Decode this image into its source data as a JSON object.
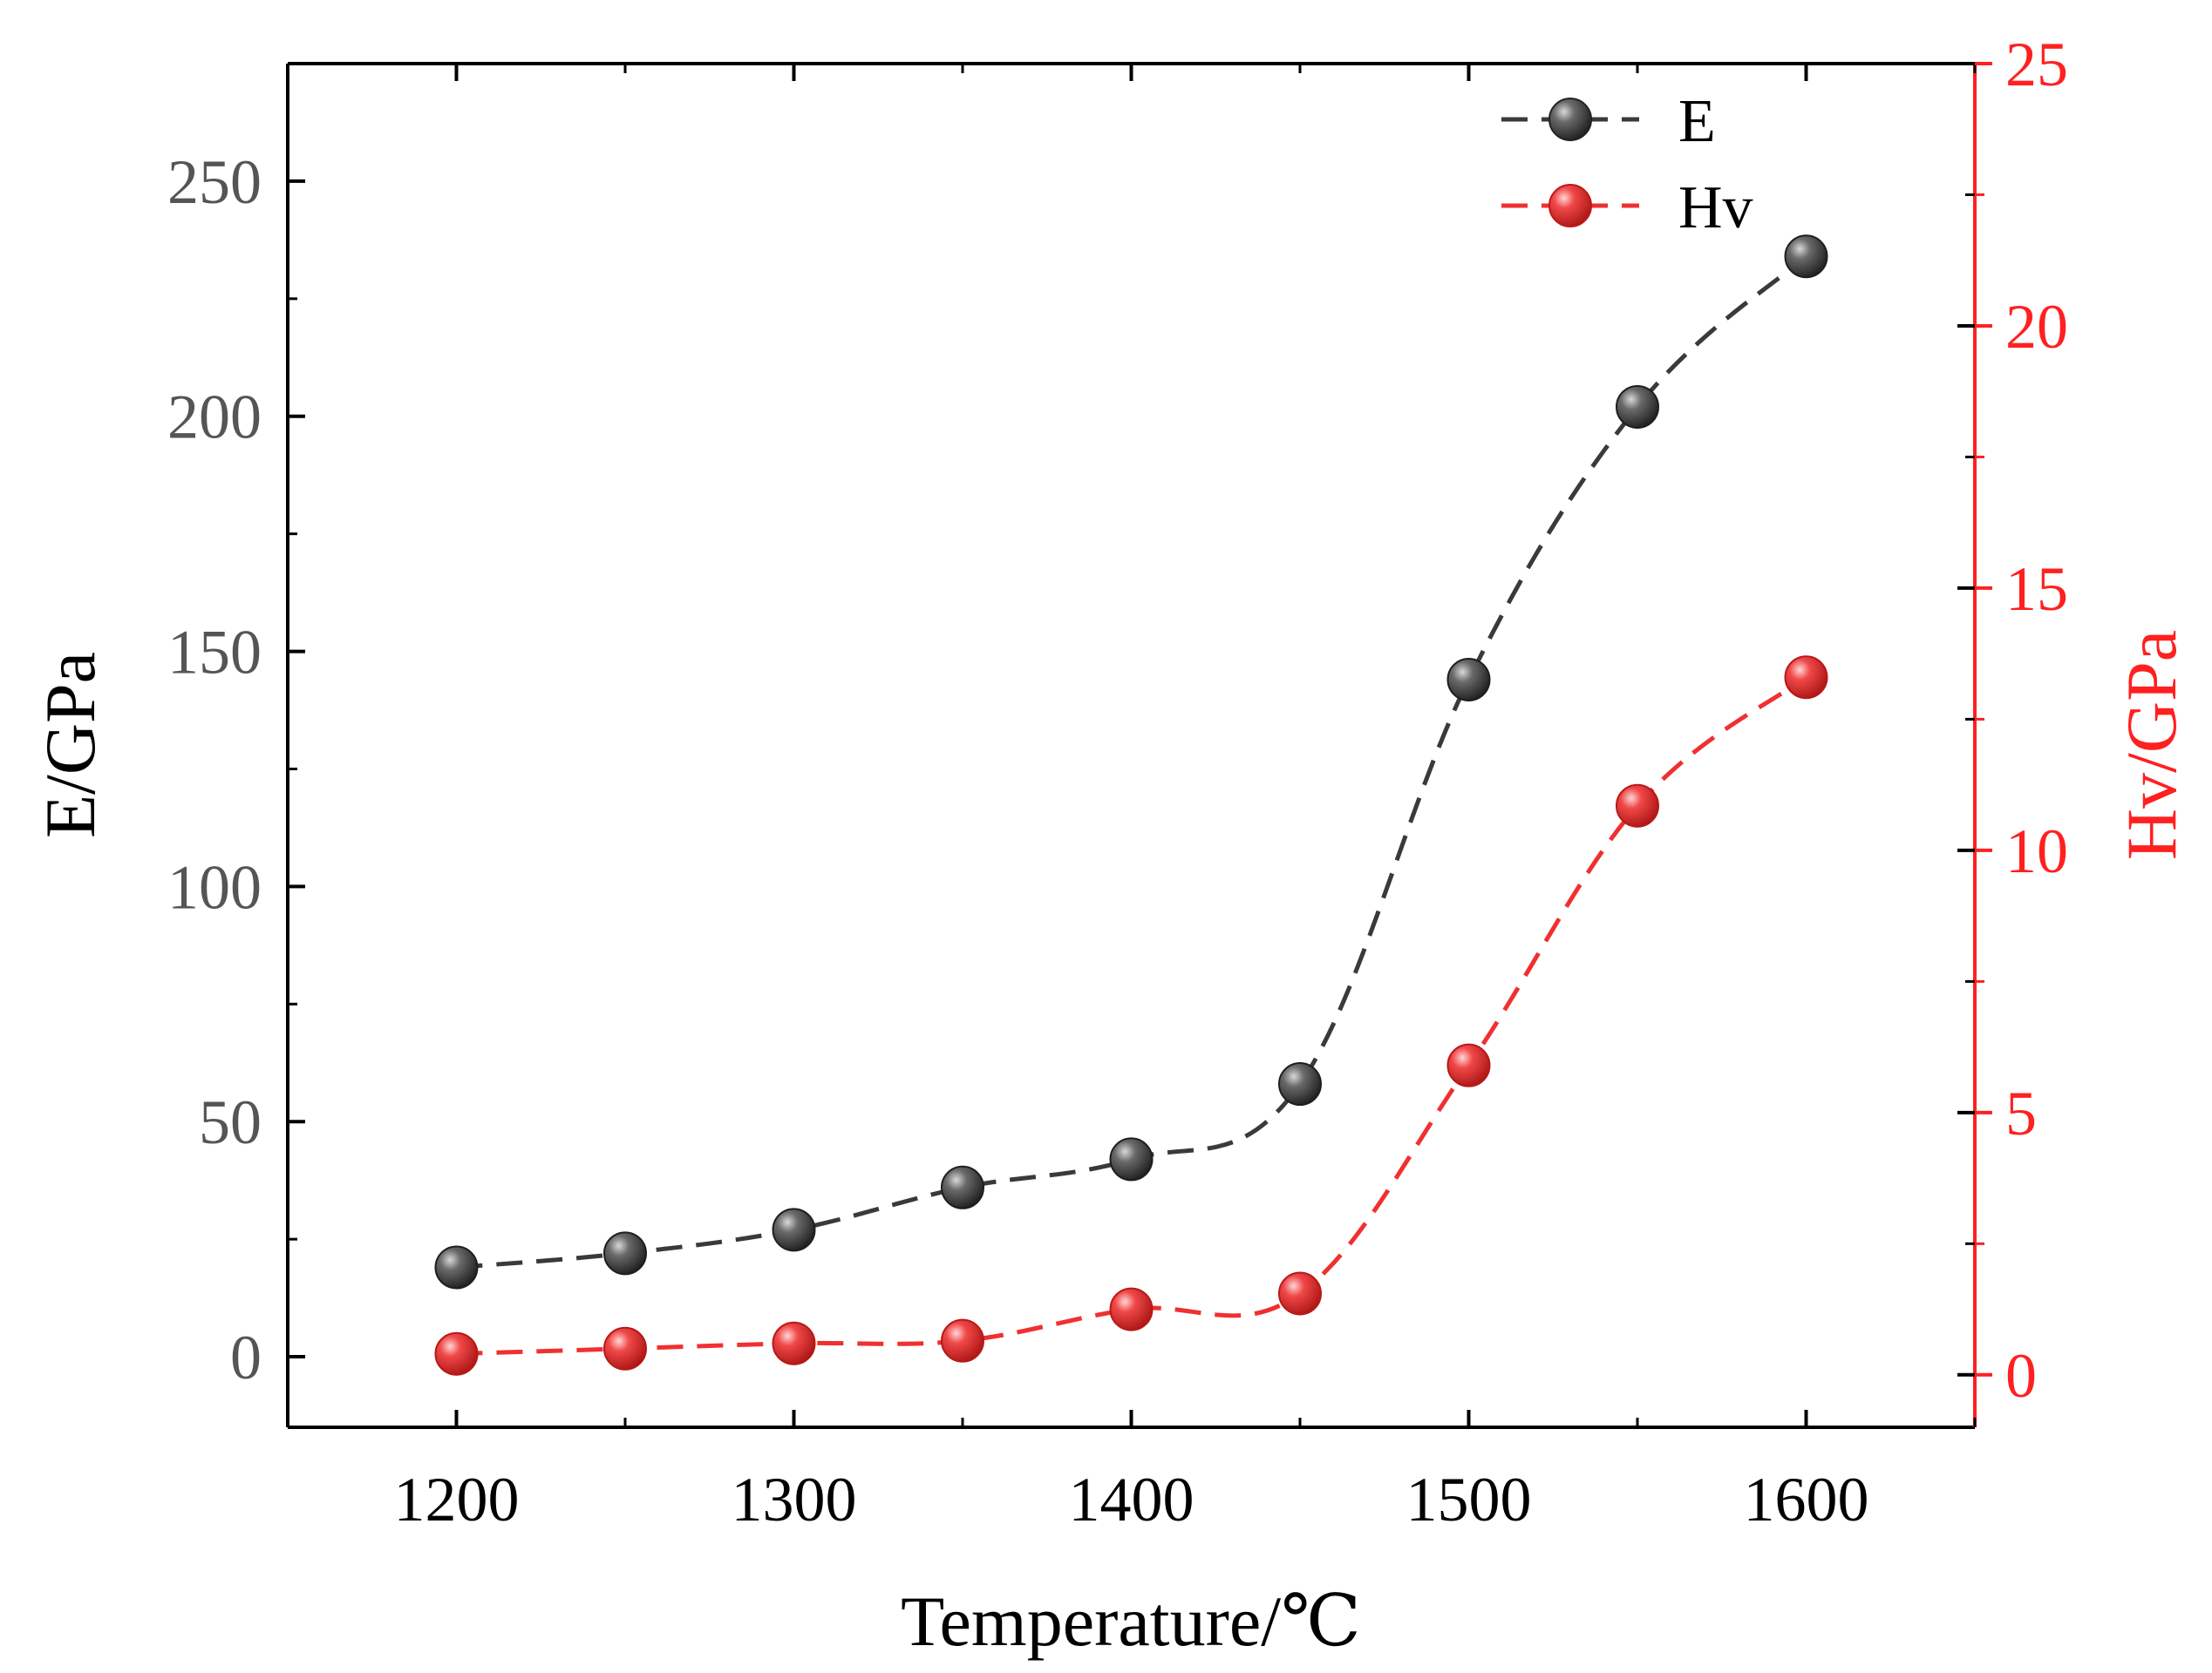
{
  "chart_data": {
    "type": "line",
    "title": "",
    "xlabel": "Temperature/℃",
    "ylabel": "E/GPa",
    "y2label": "Hv/GPa",
    "xlim": [
      1150,
      1650
    ],
    "ylim": [
      -15,
      275
    ],
    "y2lim": [
      -1.0,
      25
    ],
    "x_ticks": [
      1200,
      1300,
      1400,
      1500,
      1600
    ],
    "y_ticks": [
      0,
      50,
      100,
      150,
      200,
      250
    ],
    "y2_ticks": [
      0,
      5,
      10,
      15,
      20,
      25
    ],
    "grid": false,
    "legend_position": "top-right",
    "x": [
      1200,
      1250,
      1300,
      1350,
      1400,
      1450,
      1500,
      1550,
      1600
    ],
    "series": [
      {
        "name": "E",
        "axis": "left",
        "color": "#3a3a3a",
        "marker_color": "#555555",
        "values": [
          19,
          22,
          27,
          36,
          42,
          58,
          144,
          202,
          234
        ]
      },
      {
        "name": "Hv",
        "axis": "right",
        "color": "#f03030",
        "marker_color": "#e83838",
        "values": [
          0.4,
          0.5,
          0.6,
          0.65,
          1.25,
          1.55,
          5.9,
          10.85,
          13.3
        ]
      }
    ],
    "colors": {
      "axis": "#000000",
      "left_ticks": "#555555",
      "right_axis": "#ff2020"
    }
  }
}
